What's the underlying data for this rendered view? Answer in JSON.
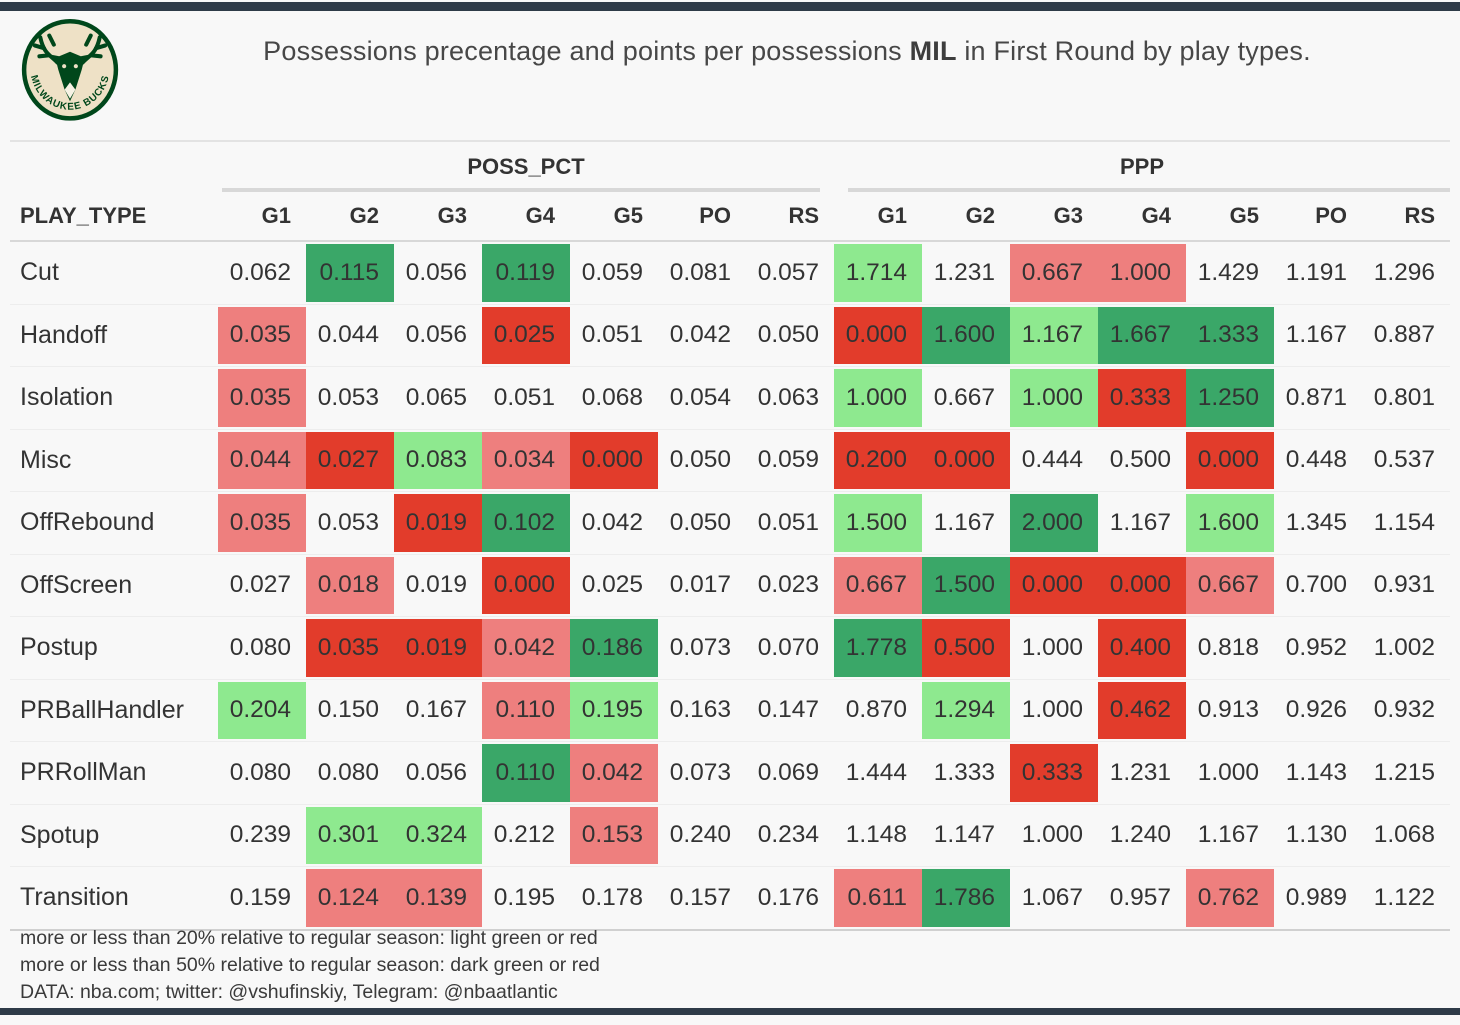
{
  "header": {
    "title_prefix": "Possessions precentage and points per possessions ",
    "title_team": "MIL",
    "title_suffix": " in First Round by play types.",
    "logo_text": "MILWAUKEE BUCKS"
  },
  "colors": {
    "light_green": "#8ee98f",
    "dark_green": "#3aa768",
    "light_red": "#ee7f7e",
    "dark_red": "#e23c2b",
    "accent_bar": "#2e3b48",
    "logo_green": "#00471b",
    "logo_cream": "#eee1c6"
  },
  "table": {
    "row_header": "PLAY_TYPE",
    "groups": [
      "POSS_PCT",
      "PPP"
    ],
    "columns": [
      "G1",
      "G2",
      "G3",
      "G4",
      "G5",
      "PO",
      "RS"
    ]
  },
  "chart_data": {
    "type": "table",
    "title": "Possessions precentage and points per possessions MIL in First Round by play types.",
    "column_groups": [
      "POSS_PCT",
      "PPP"
    ],
    "columns": [
      "G1",
      "G2",
      "G3",
      "G4",
      "G5",
      "PO",
      "RS"
    ],
    "play_types": [
      "Cut",
      "Handoff",
      "Isolation",
      "Misc",
      "OffRebound",
      "OffScreen",
      "Postup",
      "PRBallHandler",
      "PRRollMan",
      "Spotup",
      "Transition"
    ],
    "poss_pct": {
      "values": [
        [
          0.062,
          0.115,
          0.056,
          0.119,
          0.059,
          0.081,
          0.057
        ],
        [
          0.035,
          0.044,
          0.056,
          0.025,
          0.051,
          0.042,
          0.05
        ],
        [
          0.035,
          0.053,
          0.065,
          0.051,
          0.068,
          0.054,
          0.063
        ],
        [
          0.044,
          0.027,
          0.083,
          0.034,
          0.0,
          0.05,
          0.059
        ],
        [
          0.035,
          0.053,
          0.019,
          0.102,
          0.042,
          0.05,
          0.051
        ],
        [
          0.027,
          0.018,
          0.019,
          0.0,
          0.025,
          0.017,
          0.023
        ],
        [
          0.08,
          0.035,
          0.019,
          0.042,
          0.186,
          0.073,
          0.07
        ],
        [
          0.204,
          0.15,
          0.167,
          0.11,
          0.195,
          0.163,
          0.147
        ],
        [
          0.08,
          0.08,
          0.056,
          0.11,
          0.042,
          0.073,
          0.069
        ],
        [
          0.239,
          0.301,
          0.324,
          0.212,
          0.153,
          0.24,
          0.234
        ],
        [
          0.159,
          0.124,
          0.139,
          0.195,
          0.178,
          0.157,
          0.176
        ]
      ],
      "highlights": [
        [
          0,
          2,
          0,
          2,
          0,
          0,
          0
        ],
        [
          -1,
          0,
          0,
          -2,
          0,
          0,
          0
        ],
        [
          -1,
          0,
          0,
          0,
          0,
          0,
          0
        ],
        [
          -1,
          -2,
          1,
          -1,
          -2,
          0,
          0
        ],
        [
          -1,
          0,
          -2,
          2,
          0,
          0,
          0
        ],
        [
          0,
          -1,
          0,
          -2,
          0,
          0,
          0
        ],
        [
          0,
          -2,
          -2,
          -1,
          2,
          0,
          0
        ],
        [
          1,
          0,
          0,
          -1,
          1,
          0,
          0
        ],
        [
          0,
          0,
          0,
          2,
          -1,
          0,
          0
        ],
        [
          0,
          1,
          1,
          0,
          -1,
          0,
          0
        ],
        [
          0,
          -1,
          -1,
          0,
          0,
          0,
          0
        ]
      ]
    },
    "ppp": {
      "values": [
        [
          1.714,
          1.231,
          0.667,
          1.0,
          1.429,
          1.191,
          1.296
        ],
        [
          0.0,
          1.6,
          1.167,
          1.667,
          1.333,
          1.167,
          0.887
        ],
        [
          1.0,
          0.667,
          1.0,
          0.333,
          1.25,
          0.871,
          0.801
        ],
        [
          0.2,
          0.0,
          0.444,
          0.5,
          0.0,
          0.448,
          0.537
        ],
        [
          1.5,
          1.167,
          2.0,
          1.167,
          1.6,
          1.345,
          1.154
        ],
        [
          0.667,
          1.5,
          0.0,
          0.0,
          0.667,
          0.7,
          0.931
        ],
        [
          1.778,
          0.5,
          1.0,
          0.4,
          0.818,
          0.952,
          1.002
        ],
        [
          0.87,
          1.294,
          1.0,
          0.462,
          0.913,
          0.926,
          0.932
        ],
        [
          1.444,
          1.333,
          0.333,
          1.231,
          1.0,
          1.143,
          1.215
        ],
        [
          1.148,
          1.147,
          1.0,
          1.24,
          1.167,
          1.13,
          1.068
        ],
        [
          0.611,
          1.786,
          1.067,
          0.957,
          0.762,
          0.989,
          1.122
        ]
      ],
      "highlights": [
        [
          1,
          0,
          -1,
          -1,
          0,
          0,
          0
        ],
        [
          -2,
          2,
          1,
          2,
          2,
          0,
          0
        ],
        [
          1,
          0,
          1,
          -2,
          2,
          0,
          0
        ],
        [
          -2,
          -2,
          0,
          0,
          -2,
          0,
          0
        ],
        [
          1,
          0,
          2,
          0,
          1,
          0,
          0
        ],
        [
          -1,
          2,
          -2,
          -2,
          -1,
          0,
          0
        ],
        [
          2,
          -2,
          0,
          -2,
          0,
          0,
          0
        ],
        [
          0,
          1,
          0,
          -2,
          0,
          0,
          0
        ],
        [
          0,
          0,
          -2,
          0,
          0,
          0,
          0
        ],
        [
          0,
          0,
          0,
          0,
          0,
          0,
          0
        ],
        [
          -1,
          2,
          0,
          0,
          -1,
          0,
          0
        ]
      ]
    },
    "highlight_legend": {
      "1": "light green: more than 20% above regular season",
      "-1": "light red: more than 20% below regular season",
      "2": "dark green: more than 50% above regular season",
      "-2": "dark red: more than 50% below regular season",
      "0": "no highlight"
    }
  },
  "footer": {
    "line1": "more or less than 20% relative to regular season: light green or red",
    "line2": "more or less than 50% relative to regular season: dark green or red",
    "line3": "DATA: nba.com; twitter: @vshufinskiy, Telegram: @nbaatlantic"
  }
}
